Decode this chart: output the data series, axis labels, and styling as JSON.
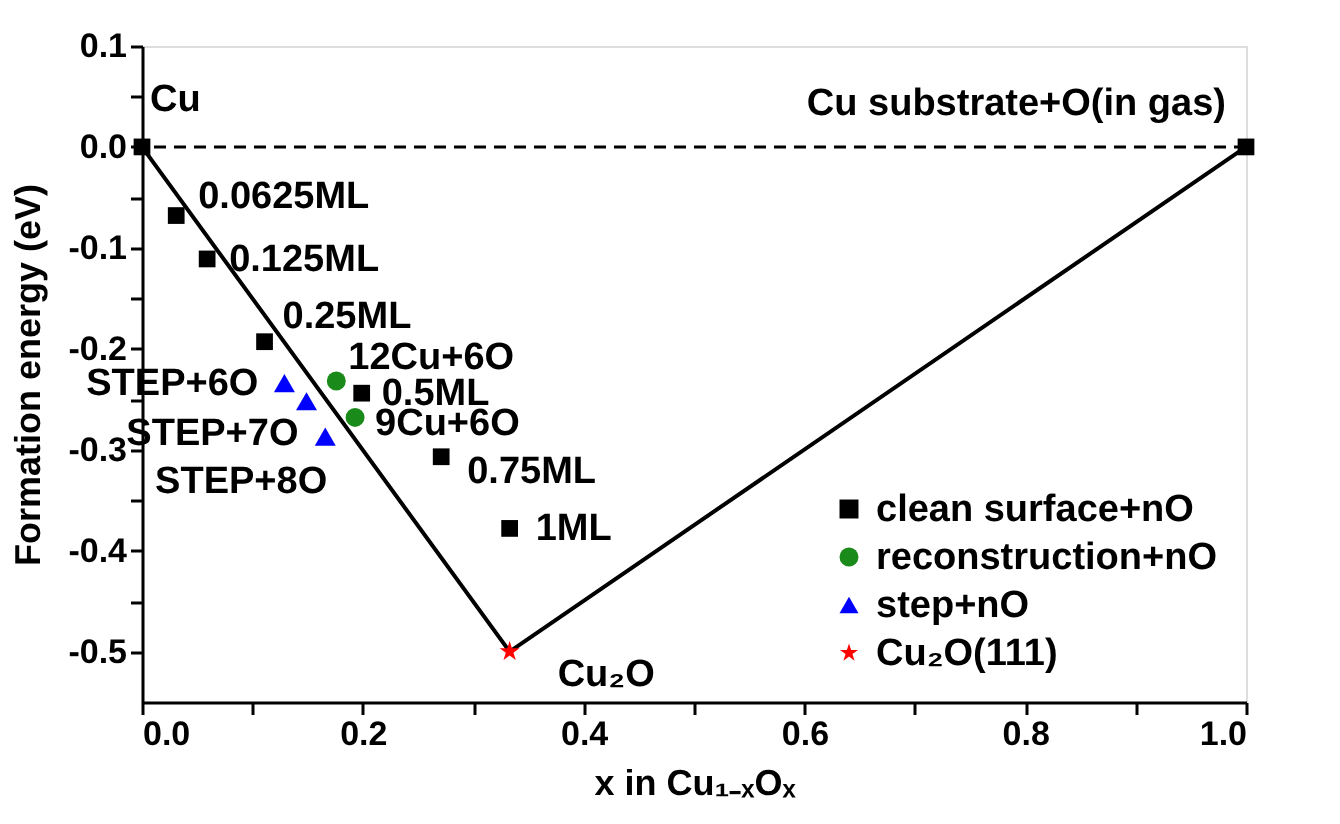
{
  "chart_data": {
    "type": "scatter",
    "xlabel": "x in Cu₁₋ₓOₓ",
    "ylabel": "Formation energy (eV)",
    "xlim": [
      0,
      1
    ],
    "ylim": [
      -0.55,
      0.1
    ],
    "xticks": [
      {
        "value": 0,
        "label": "0.0"
      },
      {
        "value": 0.1,
        "label": null
      },
      {
        "value": 0.2,
        "label": "0.2"
      },
      {
        "value": 0.3,
        "label": null
      },
      {
        "value": 0.4,
        "label": "0.4"
      },
      {
        "value": 0.5,
        "label": null
      },
      {
        "value": 0.6,
        "label": "0.6"
      },
      {
        "value": 0.7,
        "label": null
      },
      {
        "value": 0.8,
        "label": "0.8"
      },
      {
        "value": 0.9,
        "label": null
      },
      {
        "value": 1,
        "label": "1.0"
      }
    ],
    "yticks": [
      {
        "value": 0.1,
        "label": "0.1"
      },
      {
        "value": 0.05,
        "label": null
      },
      {
        "value": 0,
        "label": "0.0"
      },
      {
        "value": -0.05,
        "label": null
      },
      -0.1,
      {
        "value": -0.15,
        "label": null
      },
      -0.2,
      {
        "value": -0.25,
        "label": null
      },
      -0.3,
      {
        "value": -0.35,
        "label": null
      },
      -0.4,
      {
        "value": -0.45,
        "label": null
      },
      -0.5
    ],
    "grid": false,
    "legend": "bottom right",
    "series": [
      {
        "type": "line",
        "color": "#000000",
        "marker": "none",
        "line_style": "solid",
        "x": [
          0,
          0.333,
          1
        ],
        "values": [
          0,
          -0.5,
          0
        ]
      },
      {
        "name": "clean surface+nO",
        "type": "scatter",
        "color": "#000000",
        "marker": "square",
        "x": [
          0,
          0.031,
          0.059,
          0.111,
          0.199,
          0.271,
          0.333,
          1
        ],
        "values": [
          0,
          -0.068,
          -0.111,
          -0.193,
          -0.244,
          -0.307,
          -0.378,
          0
        ]
      },
      {
        "name": "reconstruction+nO",
        "type": "scatter",
        "color": "#1a8a1a",
        "marker": "circle",
        "x": [
          0.176,
          0.193
        ],
        "values": [
          -0.232,
          -0.268
        ]
      },
      {
        "name": "step+nO",
        "type": "scatter",
        "color": "#0000ff",
        "marker": "triangle",
        "x": [
          0.129,
          0.149,
          0.166
        ],
        "values": [
          -0.234,
          -0.252,
          -0.287
        ]
      },
      {
        "name": "Cu₂O(111)",
        "type": "scatter",
        "color": "#ff0000",
        "marker": "star",
        "x": [
          0.333
        ],
        "values": [
          -0.5
        ]
      }
    ],
    "ref_lines": [
      {
        "axis": "y",
        "value": 0,
        "color": "#000000",
        "line_style": "dashed"
      }
    ],
    "annotations": [
      {
        "text": "Cu",
        "x": 0,
        "y": 0
      },
      {
        "text": "Cu substrate+O(in gas)",
        "x": 1,
        "y": 0
      },
      {
        "text": "0.0625ML",
        "x": 0.031,
        "y": -0.068
      },
      {
        "text": "0.125ML",
        "x": 0.059,
        "y": -0.111
      },
      {
        "text": "0.25ML",
        "x": 0.111,
        "y": -0.193
      },
      {
        "text": "12Cu+6O",
        "x": 0.176,
        "y": -0.232
      },
      {
        "text": "0.5ML",
        "x": 0.199,
        "y": -0.244
      },
      {
        "text": "9Cu+6O",
        "x": 0.193,
        "y": -0.268
      },
      {
        "text": "0.75ML",
        "x": 0.271,
        "y": -0.307
      },
      {
        "text": "1ML",
        "x": 0.333,
        "y": -0.378
      },
      {
        "text": "STEP+6O",
        "x": 0.129,
        "y": -0.234
      },
      {
        "text": "STEP+7O",
        "x": 0.149,
        "y": -0.252
      },
      {
        "text": "STEP+8O",
        "x": 0.166,
        "y": -0.287
      },
      {
        "text": "Cu₂O",
        "x": 0.333,
        "y": -0.5
      }
    ]
  }
}
